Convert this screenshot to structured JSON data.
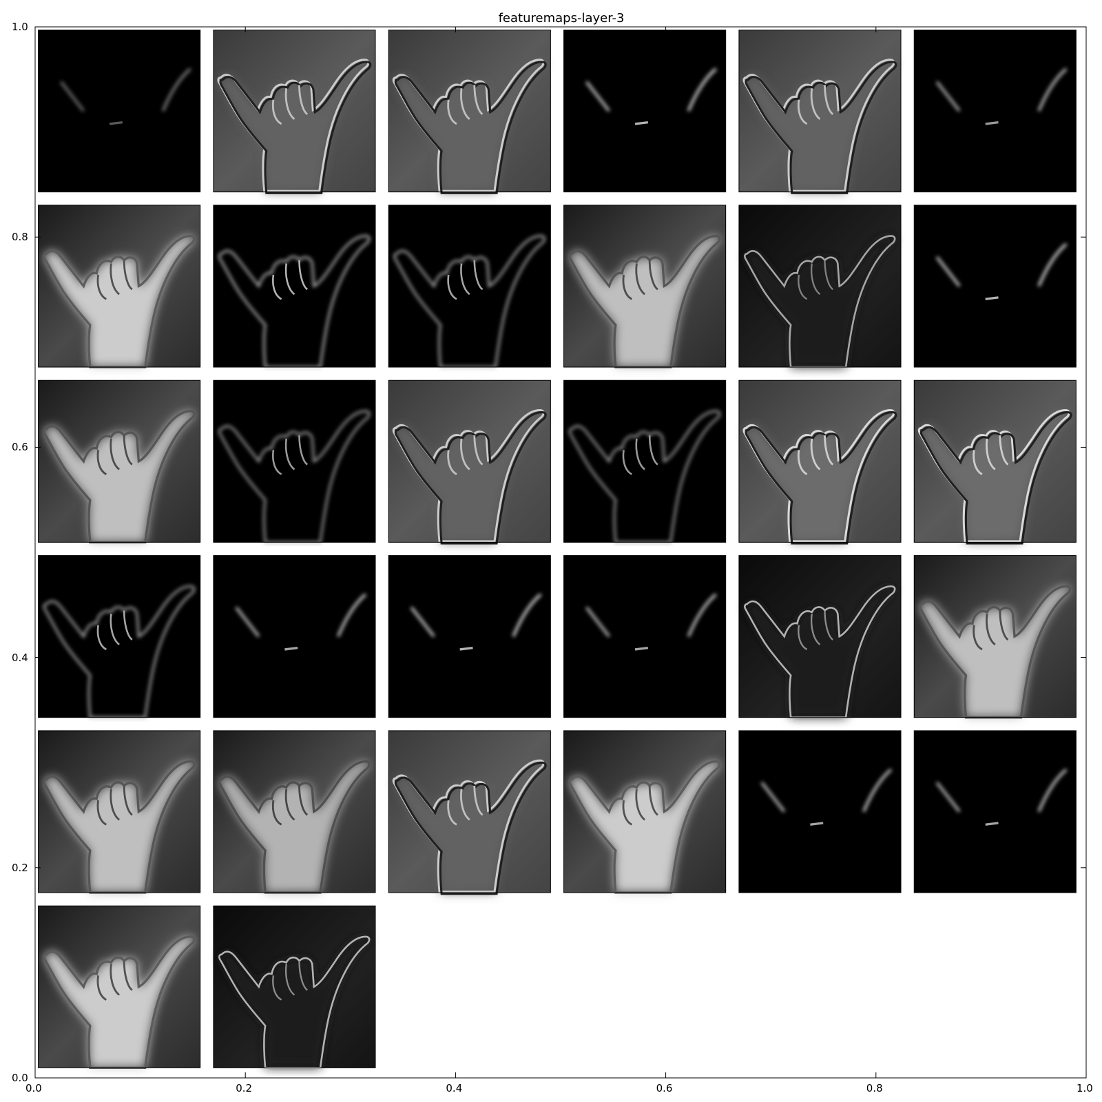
{
  "chart_data": {
    "type": "heatmap",
    "title": "featuremaps-layer-3",
    "xlim": [
      0.0,
      1.0
    ],
    "ylim": [
      0.0,
      1.0
    ],
    "x_ticks": [
      "0.0",
      "0.2",
      "0.4",
      "0.6",
      "0.8",
      "1.0"
    ],
    "y_ticks": [
      "0.0",
      "0.2",
      "0.4",
      "0.6",
      "0.8",
      "1.0"
    ],
    "grid": false,
    "grid_rows": 6,
    "grid_cols": 6,
    "tile_count": 32,
    "tiles": [
      {
        "style": "sparse",
        "brightness": 0.25
      },
      {
        "style": "emboss",
        "brightness": 0.45
      },
      {
        "style": "emboss",
        "brightness": 0.45
      },
      {
        "style": "sparse",
        "brightness": 0.6
      },
      {
        "style": "emboss",
        "brightness": 0.45
      },
      {
        "style": "sparse",
        "brightness": 0.5
      },
      {
        "style": "bright",
        "brightness": 0.8
      },
      {
        "style": "edges",
        "brightness": 0.5
      },
      {
        "style": "edges",
        "brightness": 0.45
      },
      {
        "style": "bright",
        "brightness": 0.75
      },
      {
        "style": "dark",
        "brightness": 0.35
      },
      {
        "style": "sparse",
        "brightness": 0.6
      },
      {
        "style": "bright",
        "brightness": 0.75
      },
      {
        "style": "edges",
        "brightness": 0.4
      },
      {
        "style": "emboss",
        "brightness": 0.45
      },
      {
        "style": "edges",
        "brightness": 0.4
      },
      {
        "style": "emboss",
        "brightness": 0.5
      },
      {
        "style": "emboss",
        "brightness": 0.5
      },
      {
        "style": "edges",
        "brightness": 0.45
      },
      {
        "style": "sparse",
        "brightness": 0.55
      },
      {
        "style": "sparse",
        "brightness": 0.6
      },
      {
        "style": "sparse",
        "brightness": 0.55
      },
      {
        "style": "dark",
        "brightness": 0.4
      },
      {
        "style": "bright",
        "brightness": 0.75
      },
      {
        "style": "bright",
        "brightness": 0.75
      },
      {
        "style": "bright",
        "brightness": 0.7
      },
      {
        "style": "emboss",
        "brightness": 0.45
      },
      {
        "style": "bright",
        "brightness": 0.8
      },
      {
        "style": "sparse",
        "brightness": 0.55
      },
      {
        "style": "sparse",
        "brightness": 0.55
      },
      {
        "style": "bright",
        "brightness": 0.8
      },
      {
        "style": "dark",
        "brightness": 0.4
      }
    ]
  }
}
